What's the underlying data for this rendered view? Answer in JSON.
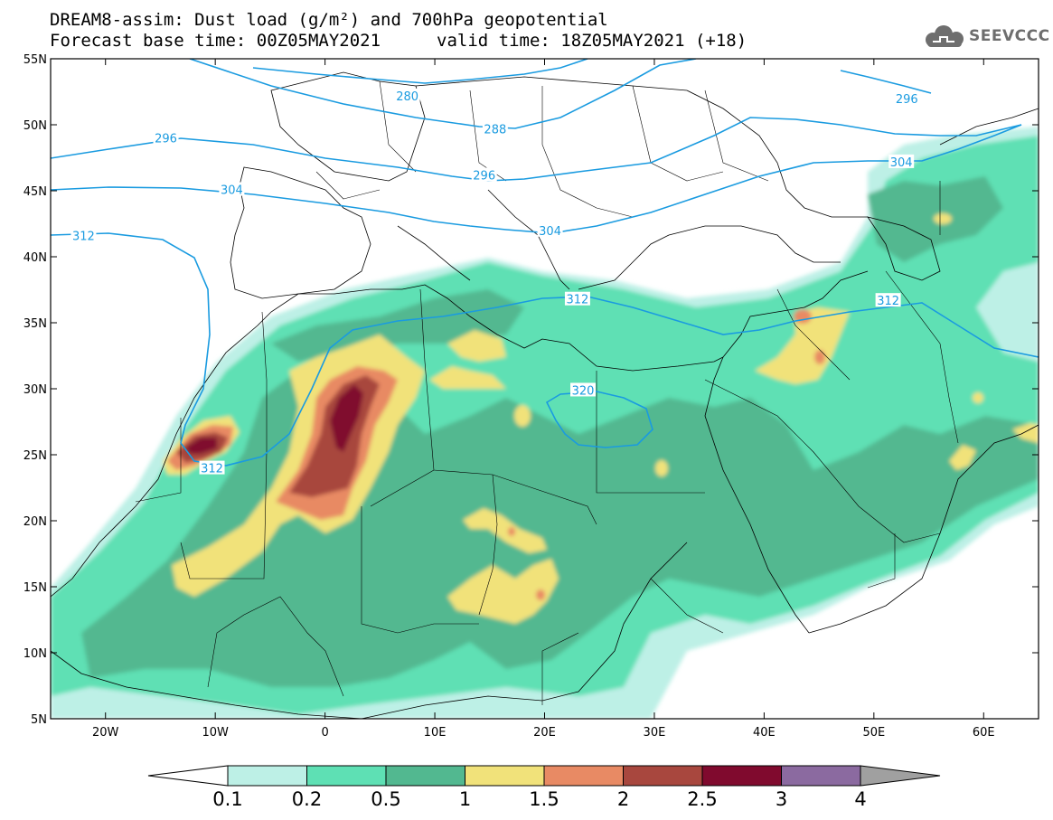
{
  "title": {
    "line1": "DREAM8-assim: Dust load (g/m²) and 700hPa geopotential",
    "line2_left": "Forecast base time: 00Z05MAY2021",
    "line2_right": "valid time: 18Z05MAY2021 (+18)"
  },
  "logo": {
    "text": "SEEVCCC",
    "icon": "cloud-logo-icon"
  },
  "map": {
    "lon_range": [
      -25,
      65
    ],
    "lat_range": [
      5,
      55
    ],
    "lat_ticks": [
      {
        "v": 55,
        "label": "55N"
      },
      {
        "v": 50,
        "label": "50N"
      },
      {
        "v": 45,
        "label": "45N"
      },
      {
        "v": 40,
        "label": "40N"
      },
      {
        "v": 35,
        "label": "35N"
      },
      {
        "v": 30,
        "label": "30N"
      },
      {
        "v": 25,
        "label": "25N"
      },
      {
        "v": 20,
        "label": "20N"
      },
      {
        "v": 15,
        "label": "15N"
      },
      {
        "v": 10,
        "label": "10N"
      },
      {
        "v": 5,
        "label": "5N"
      }
    ],
    "lon_ticks": [
      {
        "v": -20,
        "label": "20W"
      },
      {
        "v": -10,
        "label": "10W"
      },
      {
        "v": 0,
        "label": "0"
      },
      {
        "v": 10,
        "label": "10E"
      },
      {
        "v": 20,
        "label": "20E"
      },
      {
        "v": 30,
        "label": "30E"
      },
      {
        "v": 40,
        "label": "40E"
      },
      {
        "v": 50,
        "label": "50E"
      },
      {
        "v": 60,
        "label": "60E"
      }
    ],
    "contour_color": "#1a9be0",
    "contour_labels": [
      {
        "text": "280",
        "lon": 7.5,
        "lat": 52.2
      },
      {
        "text": "288",
        "lon": 15.5,
        "lat": 49.7
      },
      {
        "text": "296",
        "lon": -14.5,
        "lat": 49.0
      },
      {
        "text": "296",
        "lon": 14.5,
        "lat": 46.2
      },
      {
        "text": "296",
        "lon": 53.0,
        "lat": 52.0
      },
      {
        "text": "304",
        "lon": -8.5,
        "lat": 45.1
      },
      {
        "text": "304",
        "lon": 20.5,
        "lat": 42.0
      },
      {
        "text": "304",
        "lon": 52.5,
        "lat": 47.2
      },
      {
        "text": "312",
        "lon": -22.0,
        "lat": 41.6
      },
      {
        "text": "312",
        "lon": 23.0,
        "lat": 36.8
      },
      {
        "text": "312",
        "lon": 51.3,
        "lat": 36.7
      },
      {
        "text": "312",
        "lon": -10.3,
        "lat": 24.0
      },
      {
        "text": "320",
        "lon": 23.5,
        "lat": 29.9
      }
    ]
  },
  "colorbar": {
    "levels": [
      "0.1",
      "0.2",
      "0.5",
      "1",
      "1.5",
      "2",
      "2.5",
      "3",
      "4"
    ],
    "colors": [
      "#ffffff",
      "#bdf0e6",
      "#5ee0b4",
      "#52b890",
      "#f1e27a",
      "#e88a64",
      "#a8473e",
      "#800a2e",
      "#8b6aa0",
      "#a0a0a0"
    ]
  }
}
